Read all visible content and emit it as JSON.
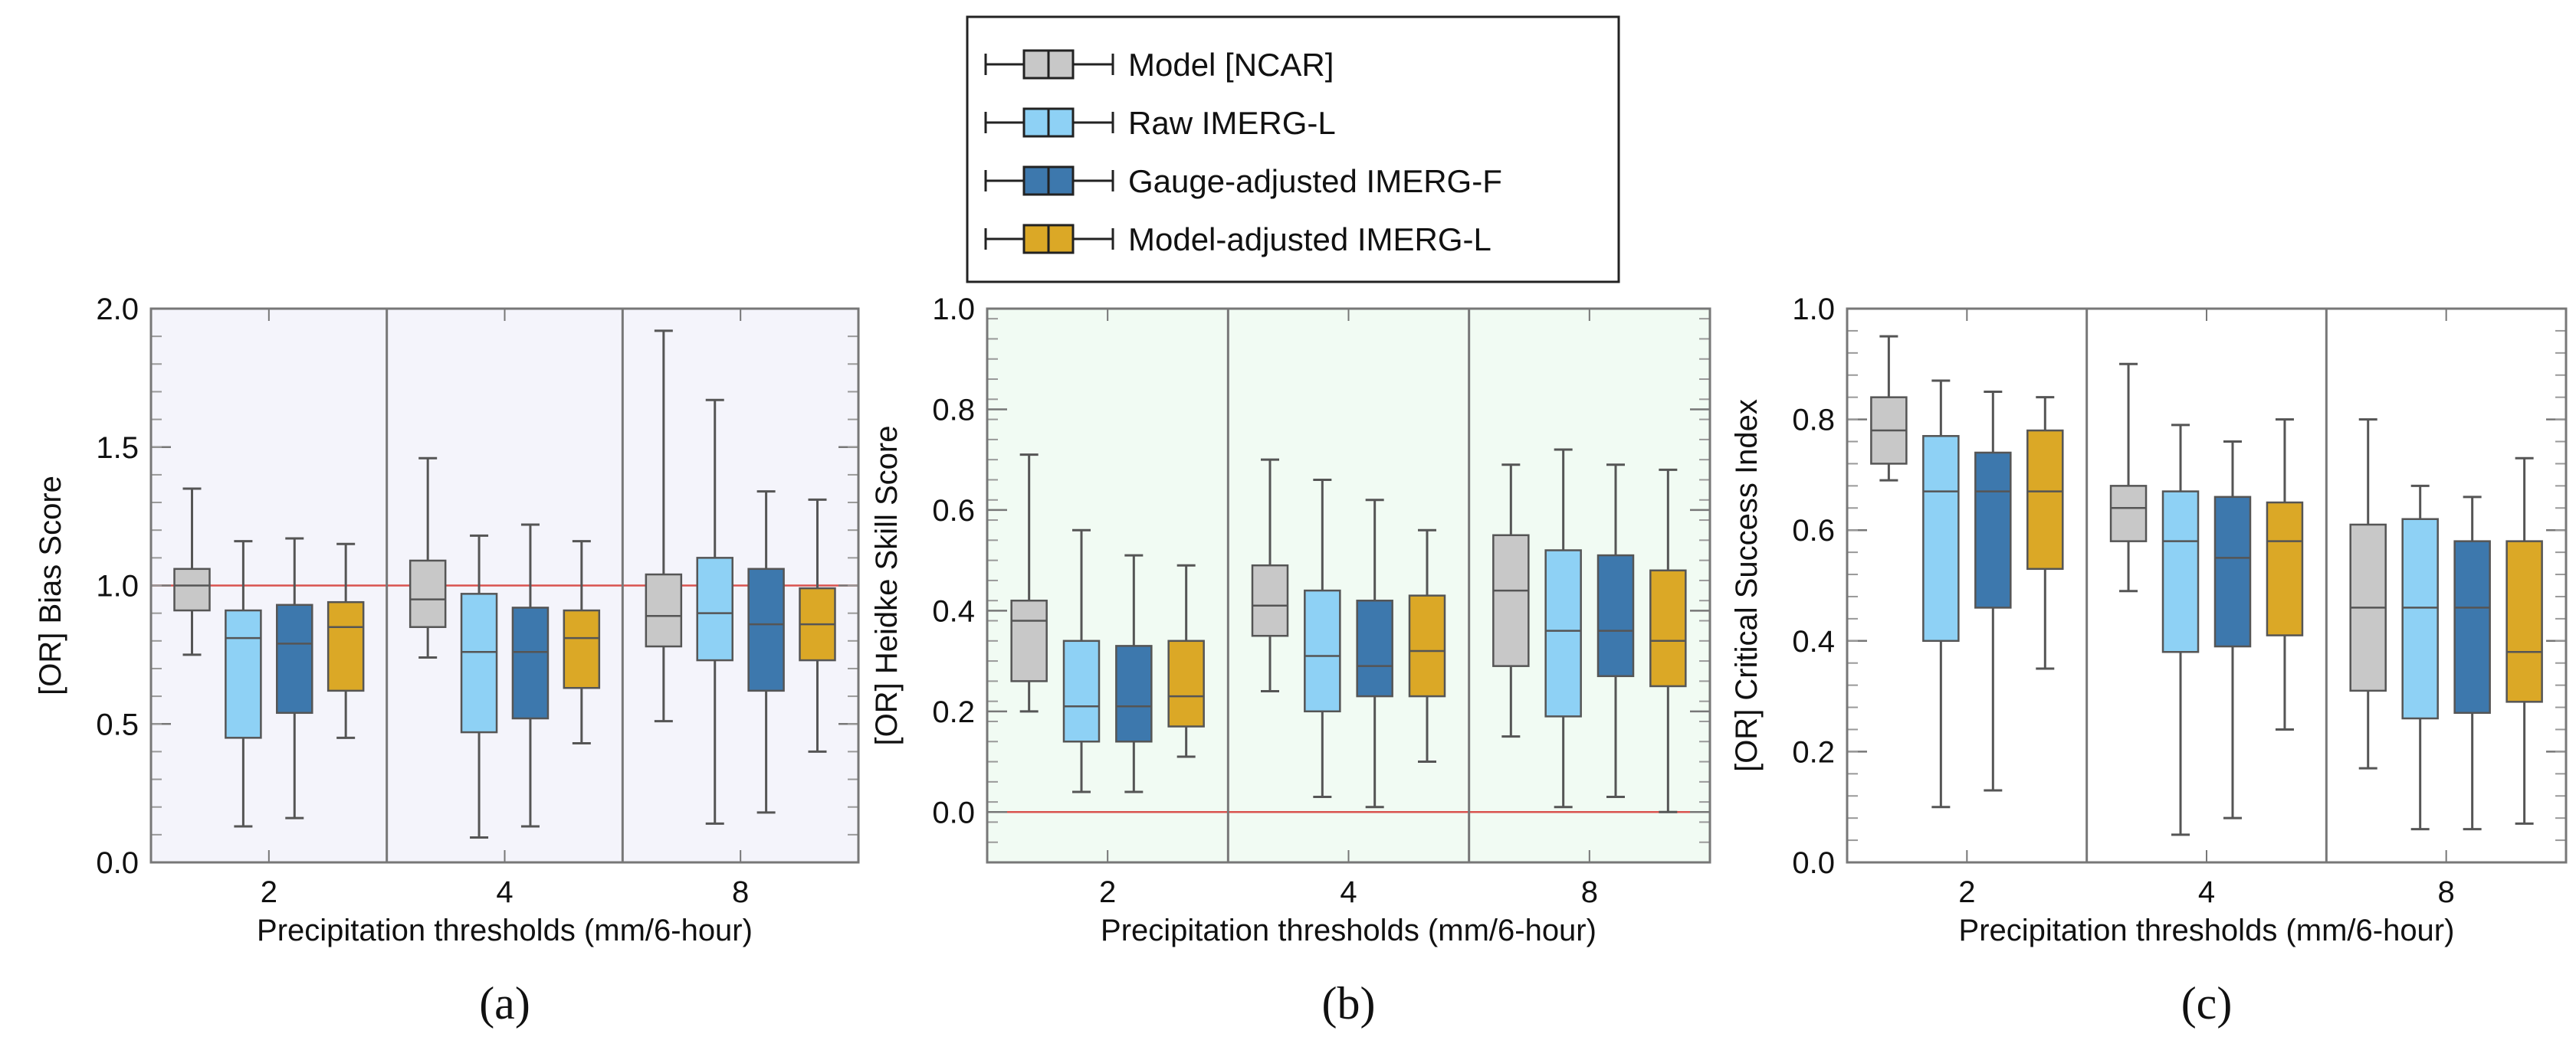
{
  "legend": [
    {
      "label": "Model [NCAR]",
      "color": "#c8c8c8"
    },
    {
      "label": "Raw IMERG-L",
      "color": "#8ed1f5"
    },
    {
      "label": "Gauge-adjusted IMERG-F",
      "color": "#3d78ad"
    },
    {
      "label": "Model-adjusted IMERG-L",
      "color": "#dba826"
    }
  ],
  "chart_data": [
    {
      "type": "boxplot",
      "panel_label": "(a)",
      "ylabel": "[OR]   Bias Score",
      "xlabel": "Precipitation thresholds (mm/6-hour)",
      "ylim": [
        0,
        2
      ],
      "yticks": [
        0.0,
        0.5,
        1.0,
        1.5,
        2.0
      ],
      "ytick_labels": [
        "0.0",
        "0.5",
        "1.0",
        "1.5",
        "2.0"
      ],
      "background": "#f4f4fb",
      "reference_line": 1.0,
      "categories": [
        "2",
        "4",
        "8"
      ],
      "series": [
        {
          "name": "Model [NCAR]",
          "boxes": [
            {
              "min": 0.75,
              "q1": 0.91,
              "median": 1.0,
              "q3": 1.06,
              "max": 1.35
            },
            {
              "min": 0.74,
              "q1": 0.85,
              "median": 0.95,
              "q3": 1.09,
              "max": 1.46
            },
            {
              "min": 0.51,
              "q1": 0.78,
              "median": 0.89,
              "q3": 1.04,
              "max": 1.92
            }
          ]
        },
        {
          "name": "Raw IMERG-L",
          "boxes": [
            {
              "min": 0.13,
              "q1": 0.45,
              "median": 0.81,
              "q3": 0.91,
              "max": 1.16
            },
            {
              "min": 0.09,
              "q1": 0.47,
              "median": 0.76,
              "q3": 0.97,
              "max": 1.18
            },
            {
              "min": 0.14,
              "q1": 0.73,
              "median": 0.9,
              "q3": 1.1,
              "max": 1.67
            }
          ]
        },
        {
          "name": "Gauge-adjusted IMERG-F",
          "boxes": [
            {
              "min": 0.16,
              "q1": 0.54,
              "median": 0.79,
              "q3": 0.93,
              "max": 1.17
            },
            {
              "min": 0.13,
              "q1": 0.52,
              "median": 0.76,
              "q3": 0.92,
              "max": 1.22
            },
            {
              "min": 0.18,
              "q1": 0.62,
              "median": 0.86,
              "q3": 1.06,
              "max": 1.34
            }
          ]
        },
        {
          "name": "Model-adjusted IMERG-L",
          "boxes": [
            {
              "min": 0.45,
              "q1": 0.62,
              "median": 0.85,
              "q3": 0.94,
              "max": 1.15
            },
            {
              "min": 0.43,
              "q1": 0.63,
              "median": 0.81,
              "q3": 0.91,
              "max": 1.16
            },
            {
              "min": 0.4,
              "q1": 0.73,
              "median": 0.86,
              "q3": 0.99,
              "max": 1.31
            }
          ]
        }
      ]
    },
    {
      "type": "boxplot",
      "panel_label": "(b)",
      "ylabel": "[OR]  Heidke Skill Score",
      "xlabel": "Precipitation thresholds (mm/6-hour)",
      "ylim": [
        -0.1,
        1.0
      ],
      "yticks": [
        0.0,
        0.2,
        0.4,
        0.6,
        0.8,
        1.0
      ],
      "ytick_labels": [
        "0.0",
        "0.2",
        "0.4",
        "0.6",
        "0.8",
        "1.0"
      ],
      "background": "#f1fbf3",
      "reference_line": 0.0,
      "categories": [
        "2",
        "4",
        "8"
      ],
      "series": [
        {
          "name": "Model [NCAR]",
          "boxes": [
            {
              "min": 0.2,
              "q1": 0.26,
              "median": 0.38,
              "q3": 0.42,
              "max": 0.71
            },
            {
              "min": 0.24,
              "q1": 0.35,
              "median": 0.41,
              "q3": 0.49,
              "max": 0.7
            },
            {
              "min": 0.15,
              "q1": 0.29,
              "median": 0.44,
              "q3": 0.55,
              "max": 0.69
            }
          ]
        },
        {
          "name": "Raw IMERG-L",
          "boxes": [
            {
              "min": 0.04,
              "q1": 0.14,
              "median": 0.21,
              "q3": 0.34,
              "max": 0.56
            },
            {
              "min": 0.03,
              "q1": 0.2,
              "median": 0.31,
              "q3": 0.44,
              "max": 0.66
            },
            {
              "min": 0.01,
              "q1": 0.19,
              "median": 0.36,
              "q3": 0.52,
              "max": 0.72
            }
          ]
        },
        {
          "name": "Gauge-adjusted IMERG-F",
          "boxes": [
            {
              "min": 0.04,
              "q1": 0.14,
              "median": 0.21,
              "q3": 0.33,
              "max": 0.51
            },
            {
              "min": 0.01,
              "q1": 0.23,
              "median": 0.29,
              "q3": 0.42,
              "max": 0.62
            },
            {
              "min": 0.03,
              "q1": 0.27,
              "median": 0.36,
              "q3": 0.51,
              "max": 0.69
            }
          ]
        },
        {
          "name": "Model-adjusted IMERG-L",
          "boxes": [
            {
              "min": 0.11,
              "q1": 0.17,
              "median": 0.23,
              "q3": 0.34,
              "max": 0.49
            },
            {
              "min": 0.1,
              "q1": 0.23,
              "median": 0.32,
              "q3": 0.43,
              "max": 0.56
            },
            {
              "min": 0.0,
              "q1": 0.25,
              "median": 0.34,
              "q3": 0.48,
              "max": 0.68
            }
          ]
        }
      ]
    },
    {
      "type": "boxplot",
      "panel_label": "(c)",
      "ylabel": "[OR]  Critical Success Index",
      "xlabel": "Precipitation thresholds (mm/6-hour)",
      "ylim": [
        0,
        1
      ],
      "yticks": [
        0.0,
        0.2,
        0.4,
        0.6,
        0.8,
        1.0
      ],
      "ytick_labels": [
        "0.0",
        "0.2",
        "0.4",
        "0.6",
        "0.8",
        "1.0"
      ],
      "background": "#ffffff",
      "reference_line": null,
      "categories": [
        "2",
        "4",
        "8"
      ],
      "series": [
        {
          "name": "Model [NCAR]",
          "boxes": [
            {
              "min": 0.69,
              "q1": 0.72,
              "median": 0.78,
              "q3": 0.84,
              "max": 0.95
            },
            {
              "min": 0.49,
              "q1": 0.58,
              "median": 0.64,
              "q3": 0.68,
              "max": 0.9
            },
            {
              "min": 0.17,
              "q1": 0.31,
              "median": 0.46,
              "q3": 0.61,
              "max": 0.8
            }
          ]
        },
        {
          "name": "Raw IMERG-L",
          "boxes": [
            {
              "min": 0.1,
              "q1": 0.4,
              "median": 0.67,
              "q3": 0.77,
              "max": 0.87
            },
            {
              "min": 0.05,
              "q1": 0.38,
              "median": 0.58,
              "q3": 0.67,
              "max": 0.79
            },
            {
              "min": 0.06,
              "q1": 0.26,
              "median": 0.46,
              "q3": 0.62,
              "max": 0.68
            }
          ]
        },
        {
          "name": "Gauge-adjusted IMERG-F",
          "boxes": [
            {
              "min": 0.13,
              "q1": 0.46,
              "median": 0.67,
              "q3": 0.74,
              "max": 0.85
            },
            {
              "min": 0.08,
              "q1": 0.39,
              "median": 0.55,
              "q3": 0.66,
              "max": 0.76
            },
            {
              "min": 0.06,
              "q1": 0.27,
              "median": 0.46,
              "q3": 0.58,
              "max": 0.66
            }
          ]
        },
        {
          "name": "Model-adjusted IMERG-L",
          "boxes": [
            {
              "min": 0.35,
              "q1": 0.53,
              "median": 0.67,
              "q3": 0.78,
              "max": 0.84
            },
            {
              "min": 0.24,
              "q1": 0.41,
              "median": 0.58,
              "q3": 0.65,
              "max": 0.8
            },
            {
              "min": 0.07,
              "q1": 0.29,
              "median": 0.38,
              "q3": 0.58,
              "max": 0.73
            }
          ]
        }
      ]
    }
  ]
}
